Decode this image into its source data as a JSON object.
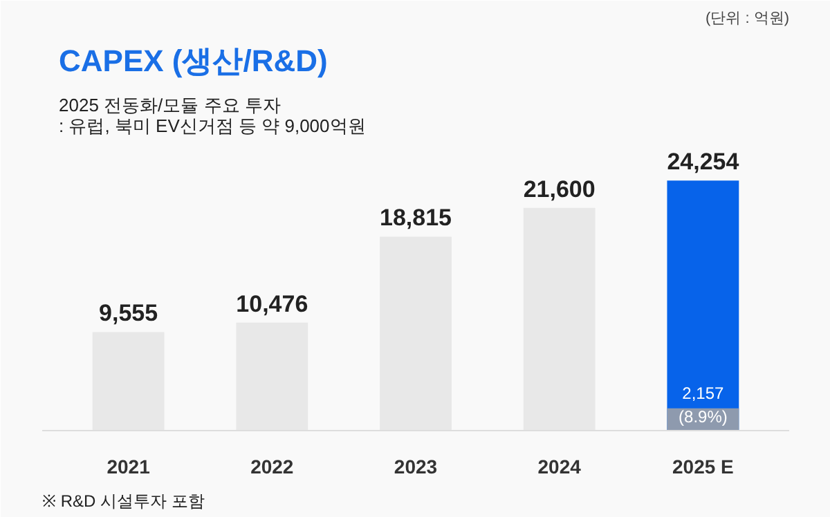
{
  "chart_data": {
    "type": "bar",
    "title": "CAPEX (생산/R&D)",
    "subtitle": "2025 전동화/모듈 주요 투자\n : 유럽, 북미 EV신거점 등 약 9,000억원",
    "categories": [
      "2021",
      "2022",
      "2023",
      "2024",
      "2025 E"
    ],
    "tick_labels": "x",
    "grid": false,
    "data_labels": true,
    "series": [
      {
        "colors": [
          "#e8e8e8",
          "#e8e8e8",
          "#e8e8e8",
          "#e8e8e8",
          "#0763ea"
        ],
        "values": [
          9555,
          10476,
          18815,
          21600,
          24254
        ],
        "value_labels": [
          "9,555",
          "10,476",
          "18,815",
          "21,600",
          "24,254"
        ]
      },
      {
        "color": "#8e9aae",
        "values": [
          null,
          null,
          null,
          null,
          2157
        ],
        "value_labels": [
          null,
          null,
          null,
          null,
          "2,157\n(8.9%)"
        ]
      }
    ],
    "annotations": [
      "(단위 : 억원)",
      "※ R&D 시설투자 포함"
    ]
  }
}
